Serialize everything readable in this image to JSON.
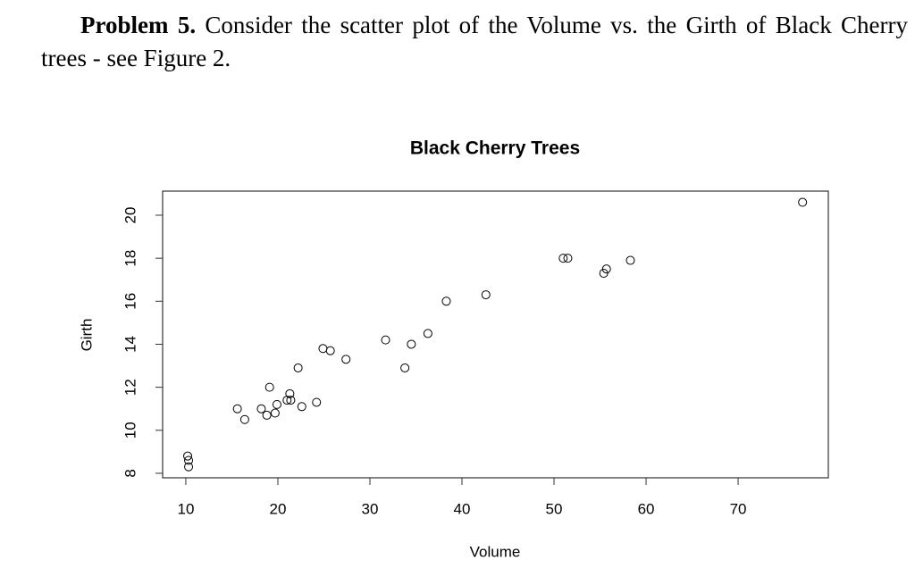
{
  "document": {
    "heading": "Problem 5.",
    "text": "Consider the scatter plot of the Volume vs. the Girth of Black Cherry trees - see Figure 2."
  },
  "chart_data": {
    "type": "scatter",
    "title": "Black Cherry Trees",
    "x_label": "Volume",
    "y_label": "Girth",
    "x": [
      10.3,
      10.3,
      10.2,
      16.4,
      18.8,
      19.7,
      15.6,
      18.2,
      22.6,
      19.9,
      24.2,
      21.0,
      21.4,
      21.3,
      19.1,
      22.2,
      33.8,
      27.4,
      25.7,
      24.9,
      34.5,
      31.7,
      36.3,
      38.3,
      42.6,
      55.4,
      55.7,
      58.3,
      51.5,
      51.0,
      77.0
    ],
    "values": [
      8.3,
      8.6,
      8.8,
      10.5,
      10.7,
      10.8,
      11.0,
      11.0,
      11.1,
      11.2,
      11.3,
      11.4,
      11.4,
      11.7,
      12.0,
      12.9,
      12.9,
      13.3,
      13.7,
      13.8,
      14.0,
      14.2,
      14.5,
      16.0,
      16.3,
      17.3,
      17.5,
      17.9,
      18.0,
      18.0,
      20.6
    ],
    "color": "#000000",
    "xlim": [
      7.48,
      79.8
    ],
    "xticks": [
      10,
      20,
      30,
      40,
      50,
      60,
      70
    ],
    "ylim": [
      7.79,
      21.12
    ],
    "yticks": [
      8,
      10,
      12,
      14,
      16,
      18,
      20
    ]
  }
}
